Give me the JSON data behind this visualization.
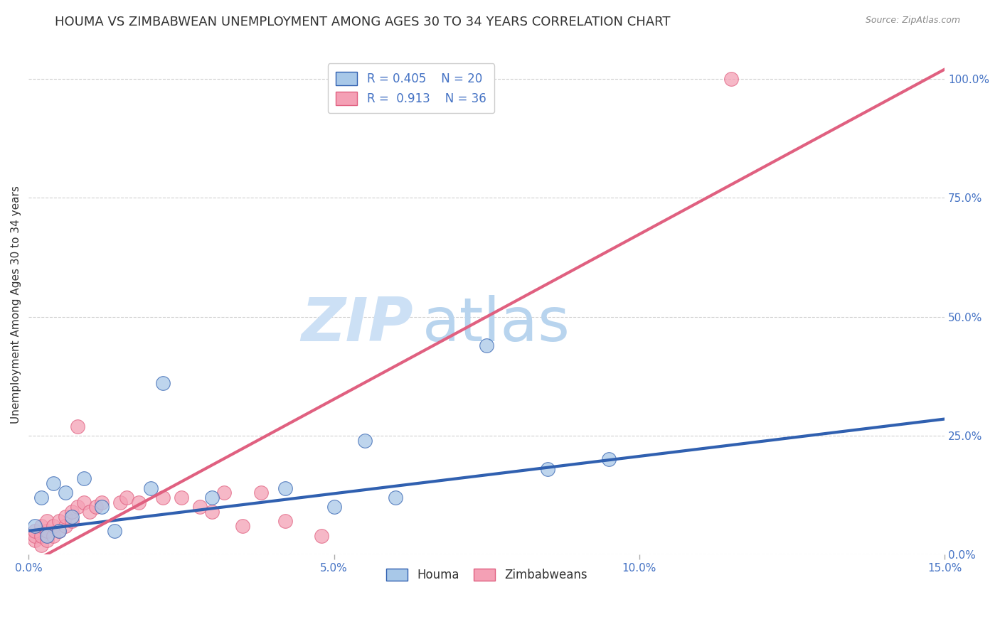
{
  "title": "HOUMA VS ZIMBABWEAN UNEMPLOYMENT AMONG AGES 30 TO 34 YEARS CORRELATION CHART",
  "source": "Source: ZipAtlas.com",
  "ylabel": "Unemployment Among Ages 30 to 34 years",
  "xlim": [
    0.0,
    0.15
  ],
  "ylim": [
    0.0,
    1.05
  ],
  "xticks": [
    0.0,
    0.05,
    0.1,
    0.15
  ],
  "xticklabels": [
    "0.0%",
    "5.0%",
    "10.0%",
    "15.0%"
  ],
  "yticks_right": [
    0.0,
    0.25,
    0.5,
    0.75,
    1.0
  ],
  "yticklabels_right": [
    "0.0%",
    "25.0%",
    "50.0%",
    "75.0%",
    "100.0%"
  ],
  "legend_r_houma": "R = 0.405",
  "legend_n_houma": "N = 20",
  "legend_r_zimb": "R =  0.913",
  "legend_n_zimb": "N = 36",
  "houma_color": "#a8c8e8",
  "zimb_color": "#f4a0b5",
  "houma_line_color": "#3060b0",
  "zimb_line_color": "#e06080",
  "houma_scatter_x": [
    0.001,
    0.002,
    0.003,
    0.004,
    0.005,
    0.006,
    0.007,
    0.009,
    0.012,
    0.014,
    0.02,
    0.022,
    0.03,
    0.042,
    0.05,
    0.055,
    0.06,
    0.075,
    0.085,
    0.095
  ],
  "houma_scatter_y": [
    0.06,
    0.12,
    0.04,
    0.15,
    0.05,
    0.13,
    0.08,
    0.16,
    0.1,
    0.05,
    0.14,
    0.36,
    0.12,
    0.14,
    0.1,
    0.24,
    0.12,
    0.44,
    0.18,
    0.2
  ],
  "zimb_scatter_x": [
    0.001,
    0.001,
    0.001,
    0.002,
    0.002,
    0.002,
    0.003,
    0.003,
    0.003,
    0.004,
    0.004,
    0.005,
    0.005,
    0.006,
    0.006,
    0.007,
    0.007,
    0.008,
    0.008,
    0.009,
    0.01,
    0.011,
    0.012,
    0.015,
    0.016,
    0.018,
    0.022,
    0.025,
    0.028,
    0.03,
    0.032,
    0.035,
    0.038,
    0.042,
    0.048,
    0.115
  ],
  "zimb_scatter_y": [
    0.03,
    0.04,
    0.05,
    0.02,
    0.04,
    0.06,
    0.03,
    0.05,
    0.07,
    0.04,
    0.06,
    0.05,
    0.07,
    0.06,
    0.08,
    0.07,
    0.09,
    0.27,
    0.1,
    0.11,
    0.09,
    0.1,
    0.11,
    0.11,
    0.12,
    0.11,
    0.12,
    0.12,
    0.1,
    0.09,
    0.13,
    0.06,
    0.13,
    0.07,
    0.04,
    1.0
  ],
  "houma_trend_x": [
    0.0,
    0.15
  ],
  "houma_trend_y": [
    0.05,
    0.285
  ],
  "zimb_trend_x": [
    0.0,
    0.15
  ],
  "zimb_trend_y": [
    -0.02,
    1.02
  ],
  "watermark_zip": "ZIP",
  "watermark_atlas": "atlas",
  "background_color": "#ffffff",
  "grid_color": "#d0d0d0",
  "title_fontsize": 13,
  "axis_label_fontsize": 11,
  "tick_fontsize": 11,
  "legend_fontsize": 12,
  "tick_color": "#4472c4",
  "text_color": "#333333",
  "source_color": "#888888"
}
